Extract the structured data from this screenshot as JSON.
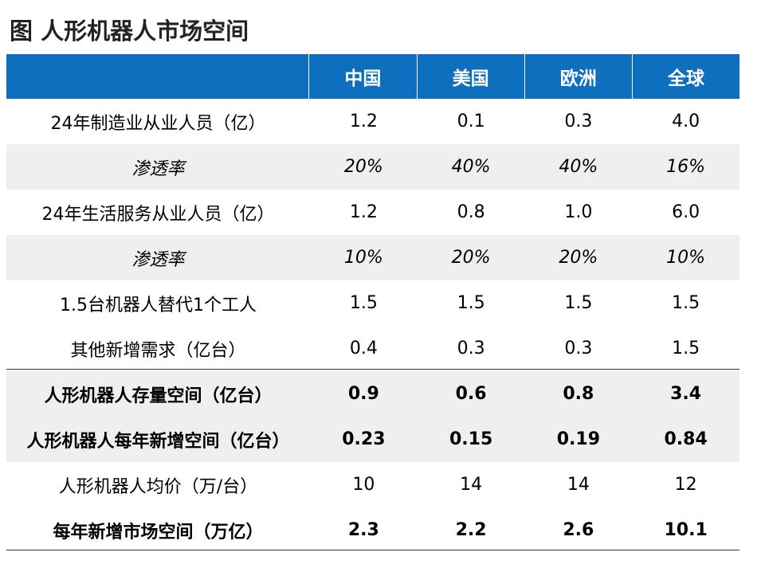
{
  "title": "图 人形机器人市场空间",
  "columns": [
    "",
    "中国",
    "美国",
    "欧洲",
    "全球"
  ],
  "rows": [
    {
      "label": "24年制造业从业人员（亿）",
      "values": [
        "1.2",
        "0.1",
        "0.3",
        "4.0"
      ]
    },
    {
      "label": "渗透率",
      "values": [
        "20%",
        "40%",
        "40%",
        "16%"
      ]
    },
    {
      "label": "24年生活服务从业人员（亿）",
      "values": [
        "1.2",
        "0.8",
        "1.0",
        "6.0"
      ]
    },
    {
      "label": "渗透率",
      "values": [
        "10%",
        "20%",
        "20%",
        "10%"
      ]
    },
    {
      "label": "1.5台机器人替代1个工人",
      "values": [
        "1.5",
        "1.5",
        "1.5",
        "1.5"
      ]
    },
    {
      "label": "其他新增需求（亿台）",
      "values": [
        "0.4",
        "0.3",
        "0.3",
        "1.5"
      ]
    },
    {
      "label": "人形机器人存量空间（亿台）",
      "values": [
        "0.9",
        "0.6",
        "0.8",
        "3.4"
      ]
    },
    {
      "label": "人形机器人每年新增空间（亿台）",
      "values": [
        "0.23",
        "0.15",
        "0.19",
        "0.84"
      ]
    },
    {
      "label": "人形机器人均价（万/台）",
      "values": [
        "10",
        "14",
        "14",
        "12"
      ]
    },
    {
      "label": "每年新增市场空间（万亿）",
      "values": [
        "2.3",
        "2.2",
        "2.6",
        "10.1"
      ]
    }
  ],
  "colors": {
    "header_bg": "#0d6fbd",
    "shaded_row": "#efefef"
  }
}
